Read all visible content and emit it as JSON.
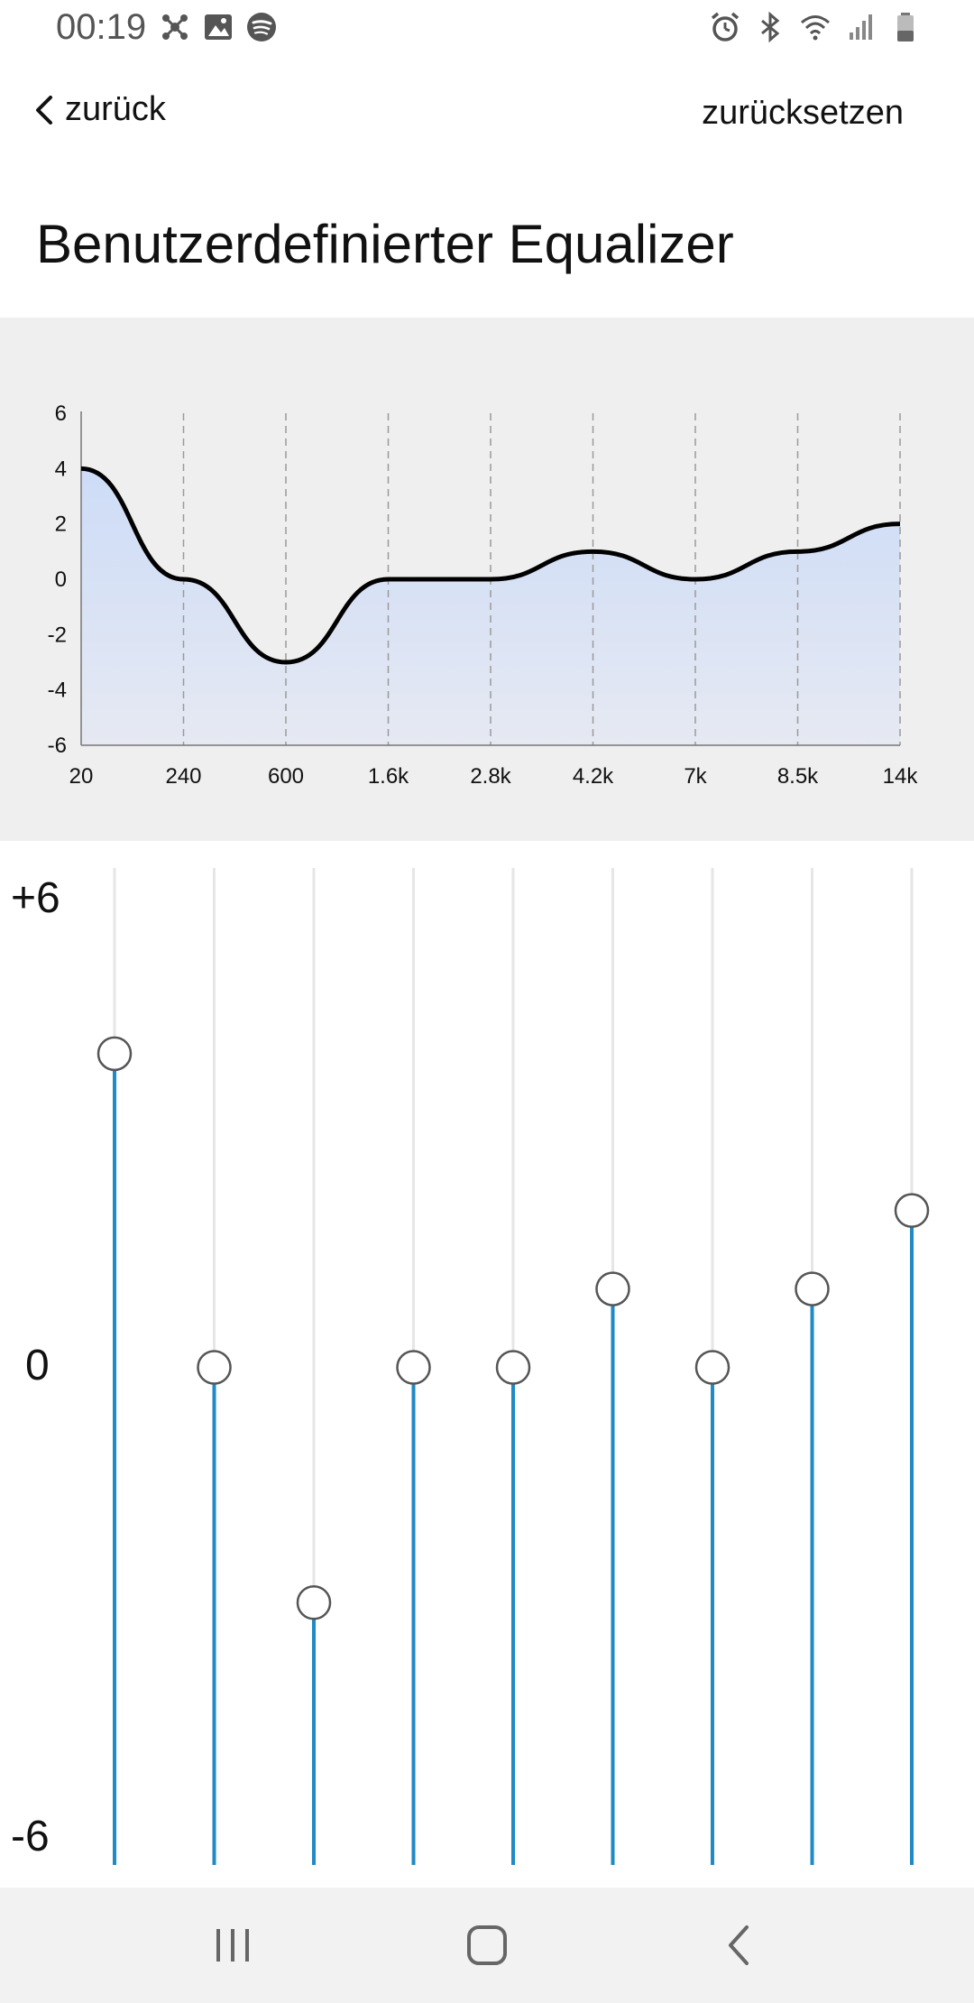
{
  "status_bar": {
    "time": "00:19",
    "left_icons": [
      "network-icon",
      "gallery-icon",
      "spotify-icon"
    ],
    "right_icons": [
      "alarm-icon",
      "bluetooth-icon",
      "wifi-icon",
      "signal-icon",
      "battery-icon"
    ]
  },
  "header": {
    "back_label": "zurück",
    "reset_label": "zurücksetzen"
  },
  "title": "Benutzerdefinierter Equalizer",
  "chart_data": {
    "type": "area",
    "categories": [
      "20",
      "240",
      "600",
      "1.6k",
      "2.8k",
      "4.2k",
      "7k",
      "8.5k",
      "14k"
    ],
    "values": [
      4,
      0,
      -3,
      0,
      0,
      1,
      0,
      1,
      2
    ],
    "y_ticks": [
      "6",
      "4",
      "2",
      "0",
      "-2",
      "-4",
      "-6"
    ],
    "ylim": [
      -6,
      6
    ],
    "grid": "vertical-dashed",
    "line_color": "#000000",
    "fill_color_top": "#cddcf7",
    "fill_color_bottom": "#e6e9f2"
  },
  "sliders": {
    "scale_labels": {
      "top": "+6",
      "mid": "0",
      "bottom": "-6"
    },
    "values": [
      4,
      0,
      -3,
      0,
      0,
      1,
      0,
      1,
      2
    ],
    "range": [
      -6,
      6
    ],
    "active_color": "#1f8ac4",
    "track_color": "#e6e6e6"
  },
  "nav_bar": {
    "icons": [
      "recent-apps-icon",
      "home-icon",
      "back-nav-icon"
    ]
  }
}
